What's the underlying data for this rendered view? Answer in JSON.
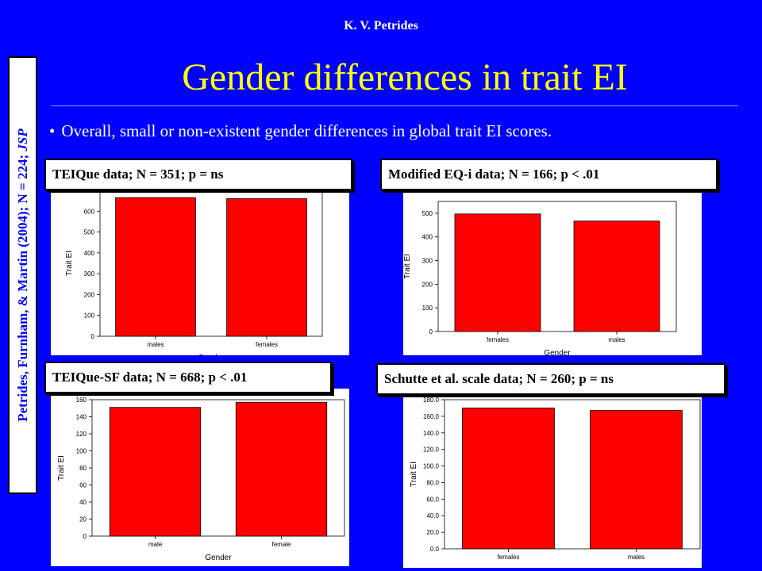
{
  "header": {
    "author": "K. V. Petrides",
    "title": "Gender differences in trait EI"
  },
  "bullet": "Overall, small or non-existent gender differences in global trait EI scores.",
  "citation": {
    "text": "Petrides, Furnham, & Martin (2004); N = 224; ",
    "journal": "JSP"
  },
  "colors": {
    "background": "#0000ff",
    "title": "#ffff00",
    "bar": "#ff0000"
  },
  "chart_data": [
    {
      "type": "bar",
      "label": "TEIQue data; N = 351; p = ns",
      "categories": [
        "males",
        "females"
      ],
      "values": [
        665,
        660
      ],
      "xlabel": "Gender",
      "ylabel": "Trait EI",
      "ylim": [
        0,
        700
      ],
      "ticks": [
        "0",
        "100",
        "200",
        "300",
        "400",
        "500",
        "600"
      ]
    },
    {
      "type": "bar",
      "label": "Modified EQ-i data; N = 166; p < .01",
      "categories": [
        "females",
        "males"
      ],
      "values": [
        497,
        467
      ],
      "xlabel": "Gender",
      "ylabel": "Trait EI",
      "ylim": [
        0,
        550
      ],
      "ticks": [
        "0",
        "100",
        "200",
        "300",
        "400",
        "500"
      ]
    },
    {
      "type": "bar",
      "label": "TEIQue-SF data; N = 668; p < .01",
      "categories": [
        "male",
        "female"
      ],
      "values": [
        151,
        157
      ],
      "xlabel": "Gender",
      "ylabel": "Trait EI",
      "ylim": [
        0,
        160
      ],
      "ticks": [
        "0",
        "20",
        "40",
        "60",
        "80",
        "100",
        "120",
        "140",
        "160"
      ]
    },
    {
      "type": "bar",
      "label": "Schutte et al. scale data; N = 260; p = ns",
      "categories": [
        "females",
        "males"
      ],
      "values": [
        170,
        167
      ],
      "xlabel": "",
      "ylabel": "Trait EI",
      "ylim": [
        0,
        180
      ],
      "ticks": [
        "0.0",
        "20.0",
        "40.0",
        "60.0",
        "80.0",
        "100.0",
        "120.0",
        "140.0",
        "160.0",
        "180.0"
      ]
    }
  ]
}
